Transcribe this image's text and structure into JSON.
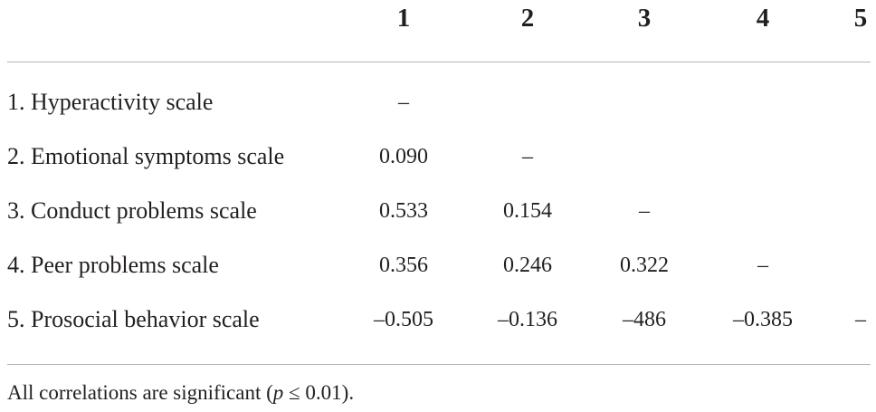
{
  "table": {
    "columns": [
      "1",
      "2",
      "3",
      "4",
      "5"
    ],
    "rows": [
      {
        "label": "1. Hyperactivity scale",
        "cells": [
          "–",
          "",
          "",
          "",
          ""
        ]
      },
      {
        "label": "2. Emotional symptoms scale",
        "cells": [
          "0.090",
          "–",
          "",
          "",
          ""
        ]
      },
      {
        "label": "3. Conduct problems scale",
        "cells": [
          "0.533",
          "0.154",
          "–",
          "",
          ""
        ]
      },
      {
        "label": "4. Peer problems scale",
        "cells": [
          "0.356",
          "0.246",
          "0.322",
          "–",
          ""
        ]
      },
      {
        "label": "5. Prosocial behavior scale",
        "cells": [
          "–0.505",
          "–0.136",
          "–486",
          "–0.385",
          "–"
        ]
      }
    ]
  },
  "footnote": {
    "prefix": "All correlations are significant (",
    "variable": "p",
    "suffix": " ≤ 0.01)."
  }
}
